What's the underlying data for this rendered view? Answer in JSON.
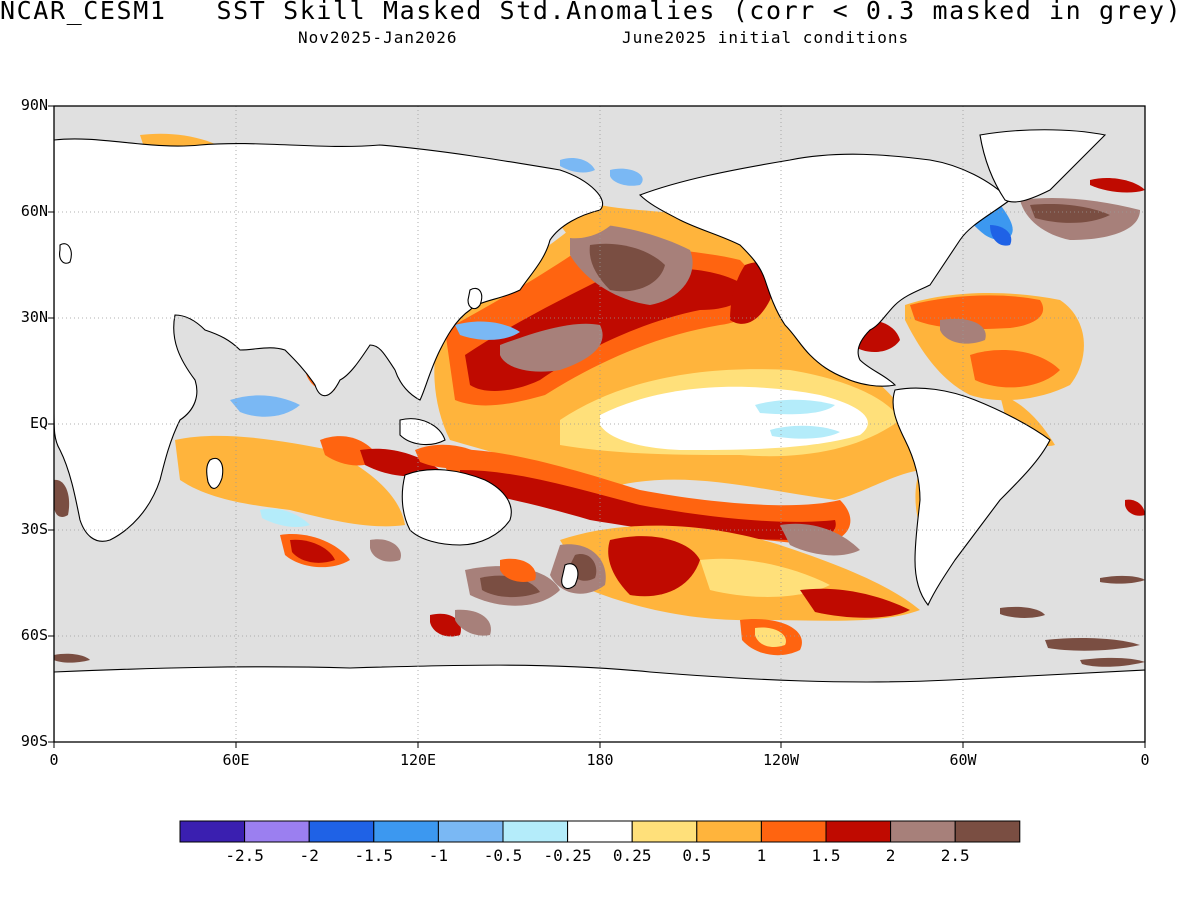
{
  "title": "NCAR_CESM1   SST Skill Masked Std.Anomalies (corr < 0.3 masked in grey)",
  "subtitle_left": "Nov2025-Jan2026",
  "subtitle_right": "June2025 initial conditions",
  "lat_labels": [
    "90N",
    "60N",
    "30N",
    "EQ",
    "30S",
    "60S",
    "90S"
  ],
  "lon_labels": [
    "0",
    "60E",
    "120E",
    "180",
    "120W",
    "60W",
    "0"
  ],
  "colorbar": {
    "colors": [
      "#3a1fb0",
      "#9b7ff0",
      "#1f62e6",
      "#3c98f0",
      "#7ab8f4",
      "#b4ecfa",
      "#ffffff",
      "#ffe07a",
      "#ffb43c",
      "#ff6410",
      "#bf0a00",
      "#a7807a",
      "#7a4e42"
    ],
    "labels": [
      "-2.5",
      "-2",
      "-1.5",
      "-1",
      "-0.5",
      "-0.25",
      "0.25",
      "0.5",
      "1",
      "1.5",
      "2",
      "2.5"
    ]
  },
  "map": {
    "mask_color": "#e0e0e0",
    "land_color": "#ffffff",
    "coastline_color": "#000000",
    "grid_style": "dotted"
  }
}
